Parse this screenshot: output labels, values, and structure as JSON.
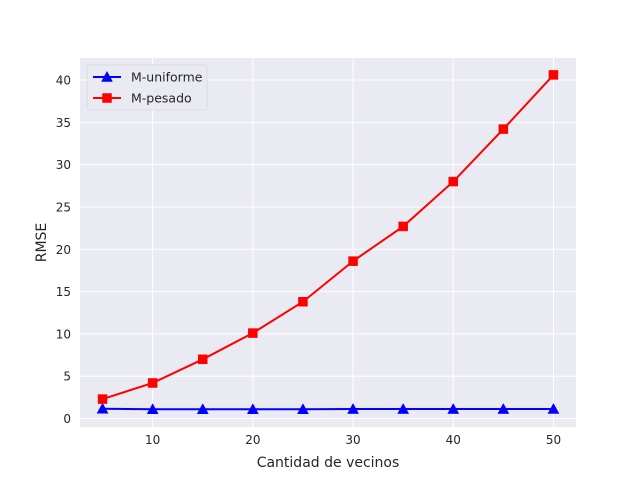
{
  "chart_data": {
    "type": "line",
    "title": "",
    "xlabel": "Cantidad de vecinos",
    "ylabel": "RMSE",
    "xlim": [
      2.75,
      52.25
    ],
    "ylim": [
      -1.0,
      42.6
    ],
    "xticks": [
      10,
      20,
      30,
      40,
      50
    ],
    "yticks": [
      0,
      5,
      10,
      15,
      20,
      25,
      30,
      35,
      40
    ],
    "grid": true,
    "legend_position": "top-left",
    "background_color": "#EAEAF2",
    "grid_color": "#FFFFFF",
    "x": [
      5,
      10,
      15,
      20,
      25,
      30,
      35,
      40,
      45,
      50
    ],
    "series": [
      {
        "name": "M-uniforme",
        "color": "#0000FF",
        "marker": "triangle",
        "values": [
          1.15,
          1.1,
          1.1,
          1.1,
          1.1,
          1.12,
          1.12,
          1.12,
          1.12,
          1.13
        ]
      },
      {
        "name": "M-pesado",
        "color": "#FF0000",
        "marker": "square",
        "values": [
          2.3,
          4.2,
          7.0,
          10.1,
          13.8,
          18.6,
          22.7,
          28.0,
          34.2,
          40.6
        ]
      }
    ]
  }
}
